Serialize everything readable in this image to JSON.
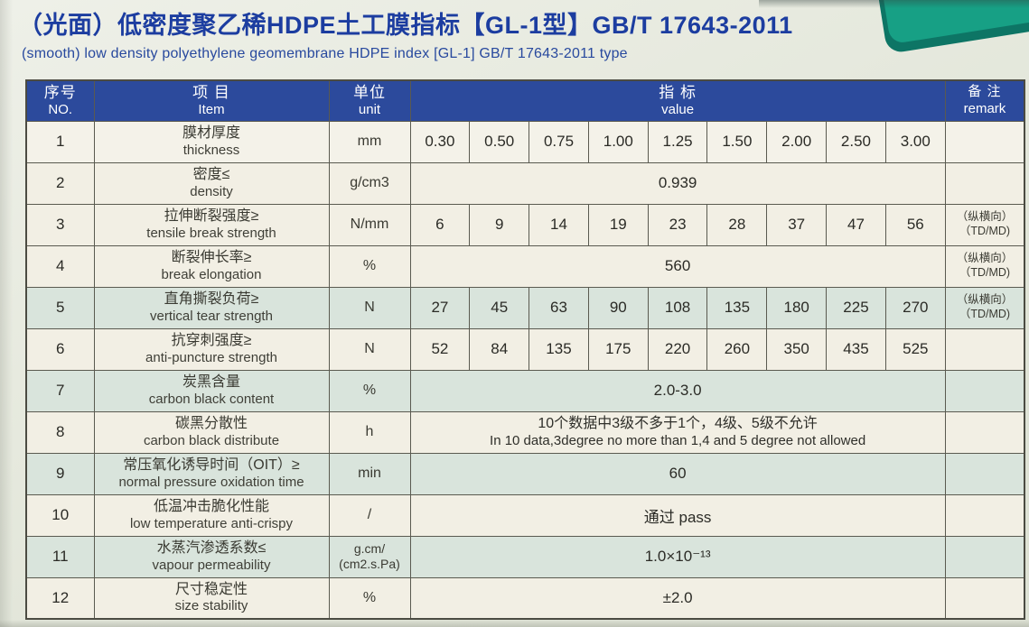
{
  "page": {
    "title": "（光面）低密度聚乙稀HDPE土工膜指标【GL-1型】GB/T 17643-2011",
    "subtitle": "(smooth) low density polyethylene geomembrane HDPE index [GL-1] GB/T 17643-2011 type"
  },
  "colors": {
    "title_blue": "#1c3da0",
    "subtitle_blue": "#28499e",
    "header_bg": "#2c4a9c",
    "row_cream": "#f2efe4",
    "row_green": "#d9e4dc",
    "corner_green": "#17a085",
    "corner_green_dark": "#0d7565",
    "border": "#5a5a50"
  },
  "table": {
    "header": {
      "no_zh": "序号",
      "no_en": "NO.",
      "item_zh": "项 目",
      "item_en": "Item",
      "unit_zh": "单位",
      "unit_en": "unit",
      "value_zh": "指 标",
      "value_en": "value",
      "remark_zh": "备 注",
      "remark_en": "remark"
    },
    "rows": [
      {
        "no": "1",
        "item_zh": "膜材厚度",
        "item_en": "thickness",
        "unit_lines": [
          "mm"
        ],
        "values": [
          "0.30",
          "0.50",
          "0.75",
          "1.00",
          "1.25",
          "1.50",
          "2.00",
          "2.50",
          "3.00"
        ],
        "remark_lines": [],
        "shade": "cream"
      },
      {
        "no": "2",
        "item_zh": "密度≤",
        "item_en": "density",
        "unit_lines": [
          "g/cm3"
        ],
        "value_lines": [
          "0.939"
        ],
        "remark_lines": [],
        "shade": "cream"
      },
      {
        "no": "3",
        "item_zh": "拉伸断裂强度≥",
        "item_en": "tensile break strength",
        "unit_lines": [
          "N/mm"
        ],
        "values": [
          "6",
          "9",
          "14",
          "19",
          "23",
          "28",
          "37",
          "47",
          "56"
        ],
        "remark_lines": [
          "（纵横向）",
          "（TD/MD)"
        ],
        "shade": "cream"
      },
      {
        "no": "4",
        "item_zh": "断裂伸长率≥",
        "item_en": "break elongation",
        "unit_lines": [
          "%"
        ],
        "value_lines": [
          "560"
        ],
        "remark_lines": [
          "（纵横向）",
          "（TD/MD)"
        ],
        "shade": "cream"
      },
      {
        "no": "5",
        "item_zh": "直角撕裂负荷≥",
        "item_en": "vertical tear strength",
        "unit_lines": [
          "N"
        ],
        "values": [
          "27",
          "45",
          "63",
          "90",
          "108",
          "135",
          "180",
          "225",
          "270"
        ],
        "remark_lines": [
          "（纵横向）",
          "（TD/MD)"
        ],
        "shade": "green"
      },
      {
        "no": "6",
        "item_zh": "抗穿刺强度≥",
        "item_en": "anti-puncture strength",
        "unit_lines": [
          "N"
        ],
        "values": [
          "52",
          "84",
          "135",
          "175",
          "220",
          "260",
          "350",
          "435",
          "525"
        ],
        "remark_lines": [],
        "shade": "cream"
      },
      {
        "no": "7",
        "item_zh": "炭黑含量",
        "item_en": "carbon black content",
        "unit_lines": [
          "%"
        ],
        "value_lines": [
          "2.0-3.0"
        ],
        "remark_lines": [],
        "shade": "green"
      },
      {
        "no": "8",
        "item_zh": "碳黑分散性",
        "item_en": "carbon black distribute",
        "unit_lines": [
          "h"
        ],
        "value_lines": [
          "10个数据中3级不多于1个，4级、5级不允许",
          "In 10 data,3degree no more than 1,4 and 5 degree not allowed"
        ],
        "remark_lines": [],
        "shade": "cream"
      },
      {
        "no": "9",
        "item_zh": "常压氧化诱导时间（OIT）≥",
        "item_en": "normal pressure oxidation time",
        "unit_lines": [
          "min"
        ],
        "value_lines": [
          "60"
        ],
        "remark_lines": [],
        "shade": "green"
      },
      {
        "no": "10",
        "item_zh": "低温冲击脆化性能",
        "item_en": "low temperature anti-crispy",
        "unit_lines": [
          "/"
        ],
        "value_lines": [
          "通过 pass"
        ],
        "remark_lines": [],
        "shade": "cream"
      },
      {
        "no": "11",
        "item_zh": "水蒸汽渗透系数≤",
        "item_en": "vapour permeability",
        "unit_lines": [
          "g.cm/",
          "(cm2.s.Pa)"
        ],
        "value_lines": [
          "1.0×10⁻¹³"
        ],
        "remark_lines": [],
        "shade": "green"
      },
      {
        "no": "12",
        "item_zh": "尺寸稳定性",
        "item_en": "size stability",
        "unit_lines": [
          "%"
        ],
        "value_lines": [
          "±2.0"
        ],
        "remark_lines": [],
        "shade": "cream"
      }
    ]
  }
}
